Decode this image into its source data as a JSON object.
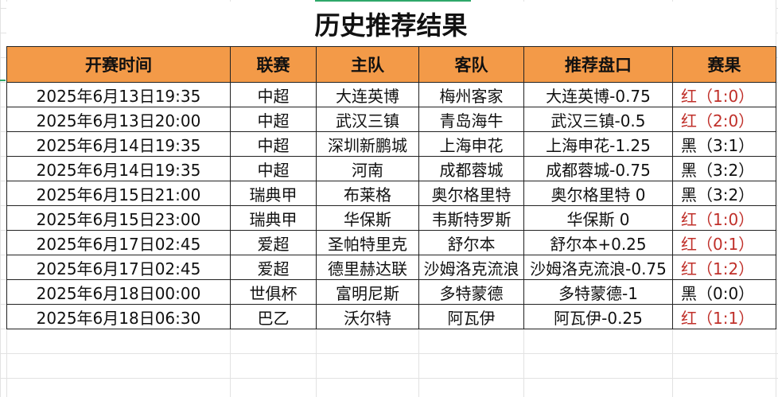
{
  "title": "历史推荐结果",
  "headers": [
    "开赛时间",
    "联赛",
    "主队",
    "客队",
    "推荐盘口",
    "赛果"
  ],
  "colors": {
    "header_bg": "#f39a48",
    "win": "#c0302a",
    "loss": "#111111"
  },
  "rows": [
    {
      "time": "2025年6月13日19:35",
      "league": "中超",
      "home": "大连英博",
      "away": "梅州客家",
      "pick": "大连英博-0.75",
      "result": "红（1:0）",
      "win": true
    },
    {
      "time": "2025年6月13日20:00",
      "league": "中超",
      "home": "武汉三镇",
      "away": "青岛海牛",
      "pick": "武汉三镇-0.5",
      "result": "红（2:0）",
      "win": true
    },
    {
      "time": "2025年6月14日19:35",
      "league": "中超",
      "home": "深圳新鹏城",
      "away": "上海申花",
      "pick": "上海申花-1.25",
      "result": "黑（3:1）",
      "win": false
    },
    {
      "time": "2025年6月14日19:35",
      "league": "中超",
      "home": "河南",
      "away": "成都蓉城",
      "pick": "成都蓉城-0.75",
      "result": "黑（3:2）",
      "win": false
    },
    {
      "time": "2025年6月15日21:00",
      "league": "瑞典甲",
      "home": "布莱格",
      "away": "奥尔格里特",
      "pick": "奥尔格里特 0",
      "result": "黑（3:2）",
      "win": false
    },
    {
      "time": "2025年6月15日23:00",
      "league": "瑞典甲",
      "home": "华保斯",
      "away": "韦斯特罗斯",
      "pick": "华保斯 0",
      "result": "红（1:0）",
      "win": true
    },
    {
      "time": "2025年6月17日02:45",
      "league": "爱超",
      "home": "圣帕特里克",
      "away": "舒尔本",
      "pick": "舒尔本+0.25",
      "result": "红（0:1）",
      "win": true
    },
    {
      "time": "2025年6月17日02:45",
      "league": "爱超",
      "home": "德里赫达联",
      "away": "沙姆洛克流浪",
      "pick": "沙姆洛克流浪-0.75",
      "result": "红（1:2）",
      "win": true
    },
    {
      "time": "2025年6月18日00:00",
      "league": "世俱杯",
      "home": "富明尼斯",
      "away": "多特蒙德",
      "pick": "多特蒙德-1",
      "result": "黑（0:0）",
      "win": false
    },
    {
      "time": "2025年6月18日06:30",
      "league": "巴乙",
      "home": "沃尔特",
      "away": "阿瓦伊",
      "pick": "阿瓦伊-0.25",
      "result": "红（1:1）",
      "win": true
    }
  ]
}
